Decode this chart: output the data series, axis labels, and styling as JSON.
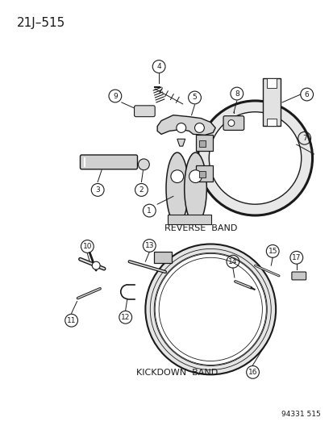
{
  "title": "21J–515",
  "background_color": "#ffffff",
  "line_color": "#1a1a1a",
  "label_fontsize": 7,
  "title_fontsize": 11,
  "reverse_band_label": "REVERSE  BAND",
  "kickdown_band_label": "KICKDOWN  BAND",
  "catalog_number": "94331 515",
  "fig_width": 4.14,
  "fig_height": 5.33,
  "dpi": 100
}
